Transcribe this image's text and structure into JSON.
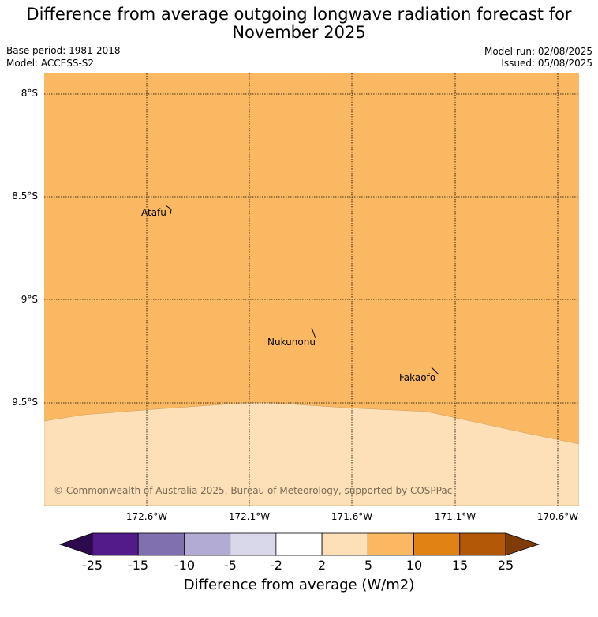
{
  "title_line1": "Difference from average outgoing longwave radiation forecast for",
  "title_line2": "November 2025",
  "base_period": "Base period: 1981-2018",
  "model": "Model: ACCESS-S2",
  "model_run": "Model run: 02/08/2025",
  "issued": "Issued: 05/08/2025",
  "map": {
    "lat_labels": [
      "8°S",
      "8.5°S",
      "9°S",
      "9.5°S"
    ],
    "lon_labels": [
      "172.6°W",
      "172.1°W",
      "171.6°W",
      "171.1°W",
      "170.6°W"
    ],
    "places": [
      "Atafu",
      "Nukunonu",
      "Fakaofo"
    ],
    "copyright": "© Commonwealth of Australia 2025, Bureau of Meteorology, supported by COSPPac",
    "field_colors": {
      "upper": "#fbb862",
      "lower": "#fde0b8"
    }
  },
  "colorbar": {
    "ticks": [
      "-25",
      "-15",
      "-10",
      "-5",
      "-2",
      "2",
      "5",
      "10",
      "15",
      "25"
    ],
    "colors": [
      "#531b8a",
      "#8070b0",
      "#b2abd3",
      "#d9d8eb",
      "#ffffff",
      "#fde0b8",
      "#fbb862",
      "#e08214",
      "#b35806"
    ],
    "under_color": "#2d0a4e",
    "over_color": "#7f3b08",
    "label": "Difference from average (W/m2)"
  }
}
